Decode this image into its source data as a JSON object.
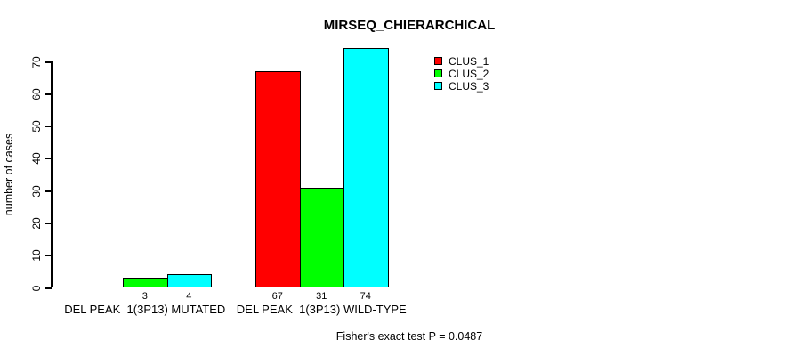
{
  "chart_data": {
    "type": "bar",
    "title": "MIRSEQ_CHIERARCHICAL",
    "ylabel": "number of cases",
    "xlabel": "",
    "ylim": [
      0,
      70
    ],
    "yticks": [
      0,
      10,
      20,
      30,
      40,
      50,
      60,
      70
    ],
    "grid": false,
    "legend_position": "top-right",
    "categories": [
      "DEL PEAK  1(3P13) MUTATED",
      "DEL PEAK  1(3P13) WILD-TYPE"
    ],
    "series": [
      {
        "name": "CLUS_1",
        "color": "#ff0000",
        "values": [
          0,
          67
        ]
      },
      {
        "name": "CLUS_2",
        "color": "#00ff00",
        "values": [
          3,
          31
        ]
      },
      {
        "name": "CLUS_3",
        "color": "#00ffff",
        "values": [
          4,
          74
        ]
      }
    ],
    "bar_labels": [
      [
        "",
        "3",
        "4"
      ],
      [
        "67",
        "31",
        "74"
      ]
    ],
    "annotation": "Fisher's exact test P = 0.0487",
    "colors": {
      "background": "#ffffff",
      "axis": "#000000",
      "text": "#000000"
    }
  }
}
